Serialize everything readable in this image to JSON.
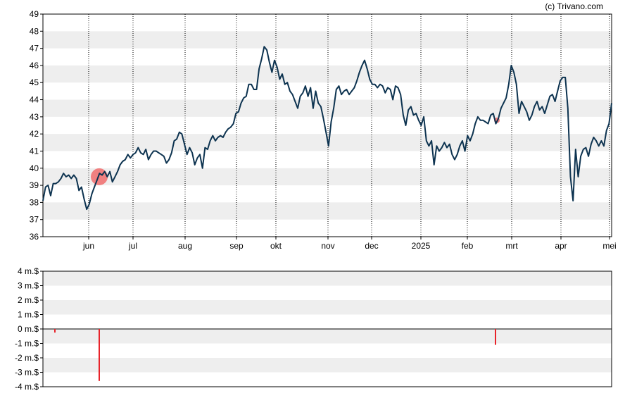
{
  "chart_data": [
    {
      "type": "line",
      "title": "",
      "xlabel": "",
      "ylabel": "",
      "ylim": [
        36,
        49
      ],
      "yticks": [
        "36",
        "37",
        "38",
        "39",
        "40",
        "41",
        "42",
        "43",
        "44",
        "45",
        "46",
        "47",
        "48",
        "49"
      ],
      "xticks": [
        "jun",
        "jul",
        "aug",
        "sep",
        "okt",
        "nov",
        "dec",
        "2025",
        "feb",
        "mrt",
        "apr",
        "mei"
      ],
      "grid": "alternating horizontal bands, dotted vertical lines at month ticks",
      "legend": "none",
      "colors": {
        "line": "#0d3350",
        "band": "#eeeeee",
        "marker": "#f08080"
      },
      "series": [
        {
          "values": [
            38.1,
            38.9,
            39.0,
            38.4,
            39.1,
            39.1,
            39.2,
            39.4,
            39.7,
            39.5,
            39.6,
            39.4,
            39.6,
            39.4,
            38.7,
            38.9,
            38.2,
            37.6,
            37.9,
            38.5,
            38.9,
            39.3,
            39.7,
            39.6,
            39.8,
            39.5,
            39.8,
            39.2,
            39.5,
            39.8,
            40.2,
            40.4,
            40.5,
            40.8,
            40.6,
            40.8,
            40.9,
            41.2,
            40.9,
            40.8,
            41.1,
            40.5,
            40.8,
            41.0,
            41.0,
            40.9,
            40.8,
            40.7,
            40.3,
            40.5,
            40.9,
            41.6,
            41.7,
            42.1,
            42.0,
            41.4,
            40.8,
            41.2,
            40.9,
            40.2,
            40.6,
            40.8,
            40.0,
            41.2,
            41.1,
            41.6,
            41.9,
            41.6,
            41.8,
            41.9,
            41.8,
            42.1,
            42.3,
            42.4,
            42.6,
            43.2,
            43.3,
            43.8,
            44.1,
            44.2,
            44.9,
            44.9,
            44.6,
            44.6,
            45.8,
            46.4,
            47.1,
            46.9,
            46.2,
            45.6,
            46.3,
            45.9,
            45.2,
            45.5,
            44.9,
            45.0,
            44.5,
            44.3,
            43.9,
            43.5,
            44.2,
            44.4,
            44.8,
            44.2,
            44.7,
            43.5,
            44.5,
            43.8,
            43.6,
            42.9,
            42.1,
            41.3,
            42.7,
            43.5,
            44.6,
            44.8,
            44.3,
            44.5,
            44.6,
            44.3,
            44.5,
            44.7,
            45.1,
            45.6,
            46.0,
            46.3,
            45.8,
            45.2,
            44.9,
            44.9,
            44.7,
            44.9,
            44.8,
            44.4,
            44.7,
            44.6,
            44.0,
            44.8,
            44.7,
            44.3,
            43.1,
            42.5,
            43.4,
            43.6,
            43.1,
            43.2,
            42.8,
            42.5,
            43.0,
            41.6,
            41.3,
            41.6,
            40.2,
            41.3,
            41.0,
            41.2,
            41.5,
            41.2,
            41.4,
            40.8,
            40.5,
            40.8,
            41.3,
            41.6,
            41.0,
            41.9,
            41.6,
            42.0,
            42.6,
            43.0,
            42.8,
            42.8,
            42.7,
            42.6,
            43.1,
            43.2,
            42.6,
            42.9,
            43.5,
            43.8,
            44.1,
            44.9,
            46.0,
            45.6,
            44.9,
            43.2,
            43.9,
            43.6,
            43.3,
            42.8,
            43.1,
            43.6,
            43.9,
            43.4,
            43.6,
            43.2,
            43.7,
            44.2,
            44.3,
            43.9,
            44.5,
            45.1,
            45.3,
            45.3,
            43.5,
            39.5,
            38.1,
            41.1,
            39.5,
            40.7,
            41.1,
            41.2,
            40.7,
            41.4,
            41.8,
            41.6,
            41.3,
            41.6,
            41.3,
            42.2,
            42.6,
            43.8
          ]
        }
      ],
      "markers": [
        {
          "label": "jun",
          "value": 39.5,
          "size": "large"
        },
        {
          "label": "feb-mrt",
          "value": 42.8,
          "size": "small"
        }
      ]
    },
    {
      "type": "bar",
      "title": "",
      "xlabel": "",
      "ylabel": "",
      "ylim": [
        -4,
        4
      ],
      "yticks": [
        "-4 m.$",
        "-3 m.$",
        "-2 m.$",
        "-1 m.$",
        "0 m.$",
        "1 m.$",
        "2 m.$",
        "3 m.$",
        "4 m.$"
      ],
      "legend": "none",
      "colors": {
        "bar": "#e8232a",
        "band": "#eeeeee"
      },
      "series": [
        {
          "values": [
            -0.25,
            -3.6,
            -1.1
          ],
          "x_position": [
            "mei",
            "jun",
            "feb-mrt"
          ]
        }
      ]
    }
  ],
  "watermark": "(c) Trivano.com"
}
